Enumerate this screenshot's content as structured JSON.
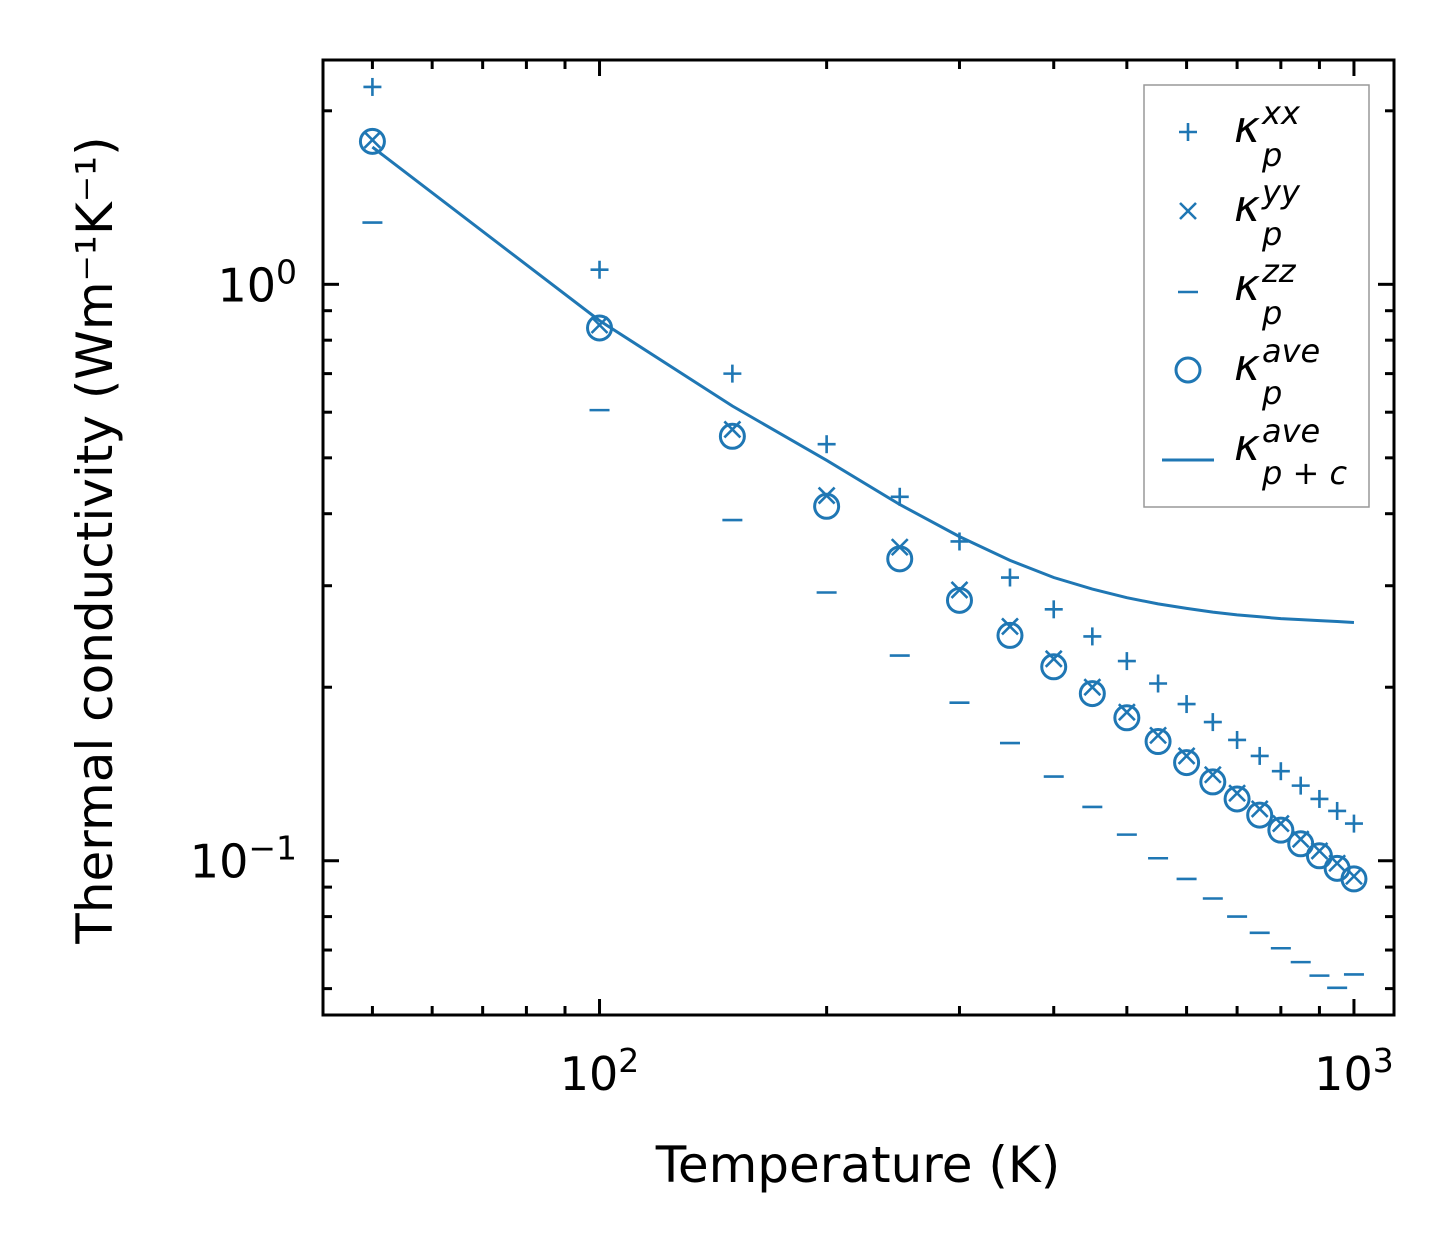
{
  "chart_data": {
    "type": "scatter",
    "xscale": "log",
    "yscale": "log",
    "xlabel": "Temperature (K)",
    "ylabel": "Thermal conductivity (Wm⁻¹K⁻¹)",
    "xlim": [
      43,
      1130
    ],
    "ylim": [
      0.054,
      2.45
    ],
    "x_ticks": [
      {
        "value": 100,
        "base": "10",
        "exp": "2"
      },
      {
        "value": 1000,
        "base": "10",
        "exp": "3"
      }
    ],
    "y_ticks": [
      {
        "value": 1,
        "base": "10",
        "exp": "0"
      },
      {
        "value": 0.1,
        "base": "10",
        "exp": "−1"
      }
    ],
    "legend_position": "upper right",
    "color": "#1f77b4",
    "x": [
      50,
      100,
      150,
      200,
      250,
      300,
      350,
      400,
      450,
      500,
      550,
      600,
      650,
      700,
      750,
      800,
      850,
      900,
      950,
      1000
    ],
    "series": [
      {
        "name": "kappa_p^xx",
        "marker": "plus",
        "style": "scatter",
        "values": [
          2.2,
          1.06,
          0.7,
          0.528,
          0.428,
          0.358,
          0.31,
          0.273,
          0.245,
          0.222,
          0.203,
          0.187,
          0.174,
          0.162,
          0.152,
          0.143,
          0.135,
          0.128,
          0.122,
          0.116
        ]
      },
      {
        "name": "kappa_p^yy",
        "marker": "x",
        "style": "scatter",
        "values": [
          1.78,
          0.85,
          0.56,
          0.43,
          0.35,
          0.295,
          0.255,
          0.224,
          0.2,
          0.181,
          0.165,
          0.152,
          0.141,
          0.131,
          0.123,
          0.116,
          0.109,
          0.104,
          0.099,
          0.094
        ]
      },
      {
        "name": "kappa_p^zz",
        "marker": "dash",
        "style": "scatter",
        "values": [
          1.28,
          0.605,
          0.39,
          0.292,
          0.227,
          0.188,
          0.16,
          0.14,
          0.124,
          0.111,
          0.101,
          0.093,
          0.086,
          0.08,
          0.075,
          0.0705,
          0.0667,
          0.0632,
          0.0602,
          0.0635
        ]
      },
      {
        "name": "kappa_p^ave",
        "marker": "circle",
        "style": "scatter",
        "values": [
          1.77,
          0.84,
          0.545,
          0.412,
          0.334,
          0.283,
          0.246,
          0.217,
          0.195,
          0.177,
          0.161,
          0.148,
          0.137,
          0.128,
          0.12,
          0.113,
          0.107,
          0.102,
          0.097,
          0.093
        ]
      },
      {
        "name": "kappa_p+c^ave",
        "marker": "none",
        "style": "line",
        "values": [
          1.73,
          0.865,
          0.615,
          0.495,
          0.415,
          0.365,
          0.332,
          0.31,
          0.296,
          0.286,
          0.279,
          0.274,
          0.27,
          0.267,
          0.265,
          0.263,
          0.262,
          0.261,
          0.26,
          0.259
        ]
      }
    ],
    "legend": [
      {
        "base": "κ",
        "sup": "xx",
        "sub": "p"
      },
      {
        "base": "κ",
        "sup": "yy",
        "sub": "p"
      },
      {
        "base": "κ",
        "sup": "zz",
        "sub": "p"
      },
      {
        "base": "κ",
        "sup": "ave",
        "sub": "p"
      },
      {
        "base": "κ",
        "sup": "ave",
        "sub": "p + c"
      }
    ]
  }
}
